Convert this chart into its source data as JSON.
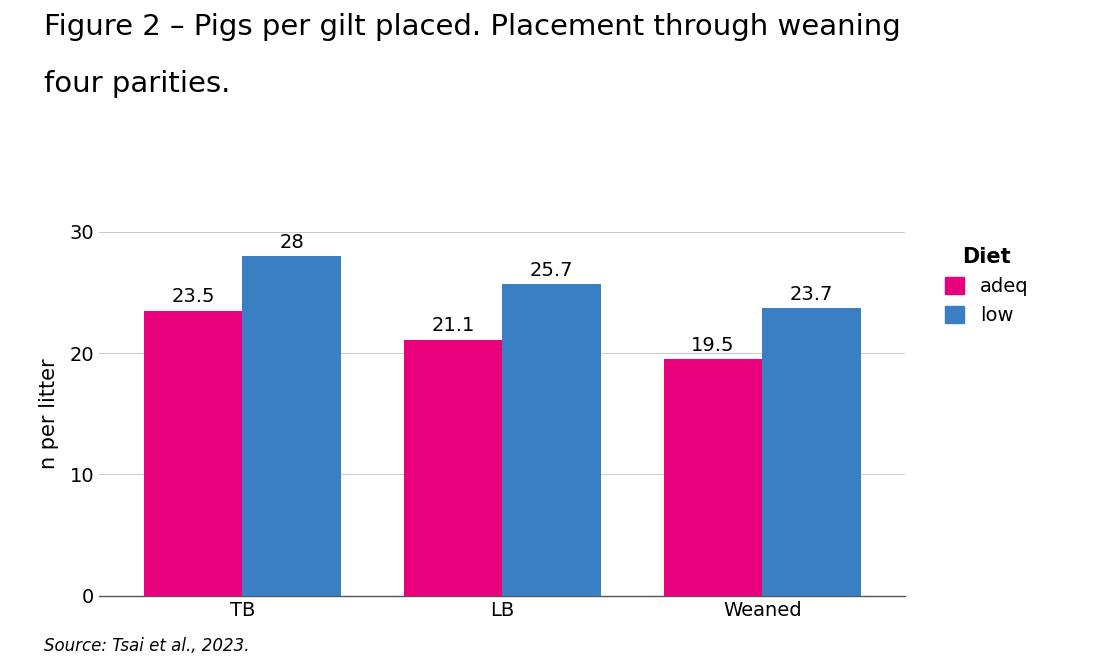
{
  "title_line1": "Figure 2 – Pigs per gilt placed. Placement through weaning",
  "title_line2": "four parities.",
  "ylabel": "n per litter",
  "categories": [
    "TB",
    "LB",
    "Weaned"
  ],
  "adeq_values": [
    23.5,
    21.1,
    19.5
  ],
  "low_values": [
    28.0,
    25.7,
    23.7
  ],
  "low_labels": [
    "28",
    "25.7",
    "23.7"
  ],
  "adeq_labels": [
    "23.5",
    "21.1",
    "19.5"
  ],
  "adeq_color": "#E8007D",
  "low_color": "#3A7EC4",
  "ylim": [
    0,
    30
  ],
  "yticks": [
    0,
    10,
    20,
    30
  ],
  "bar_width": 0.38,
  "legend_title": "Diet",
  "legend_labels": [
    "adeq",
    "low"
  ],
  "source_text": "Source: Tsai et al., 2023.",
  "title_fontsize": 21,
  "axis_label_fontsize": 15,
  "tick_fontsize": 14,
  "bar_label_fontsize": 14,
  "legend_fontsize": 14,
  "legend_title_fontsize": 15,
  "source_fontsize": 12,
  "background_color": "#ffffff"
}
